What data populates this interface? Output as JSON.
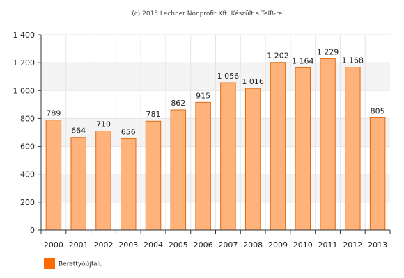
{
  "chart_data": {
    "type": "bar",
    "title": "",
    "credit": "(c) 2015 Lechner Nonprofit Kft. Készült a TeIR-rel.",
    "xlabel": "",
    "ylabel": "",
    "categories": [
      "2000",
      "2001",
      "2002",
      "2003",
      "2004",
      "2005",
      "2006",
      "2007",
      "2008",
      "2009",
      "2010",
      "2011",
      "2012",
      "2013"
    ],
    "series": [
      {
        "name": "Berettyóújfalu",
        "values": [
          789,
          664,
          710,
          656,
          781,
          862,
          915,
          1056,
          1016,
          1202,
          1164,
          1229,
          1168,
          805
        ],
        "value_labels": [
          "789",
          "664",
          "710",
          "656",
          "781",
          "862",
          "915",
          "1 056",
          "1 016",
          "1 202",
          "1 164",
          "1 229",
          "1 168",
          "805"
        ]
      }
    ],
    "ylim": [
      0,
      1400
    ],
    "yticks": [
      0,
      200,
      400,
      600,
      800,
      1000,
      1200,
      1400
    ],
    "ytick_labels": [
      "0",
      "200",
      "400",
      "600",
      "800",
      "1 000",
      "1 200",
      "1 400"
    ],
    "grid": true,
    "legend_position": "bottom-left",
    "colors": {
      "bar_fill": "#ffb27a",
      "bar_stroke": "#e06a10",
      "legend_swatch": "#ff6a00",
      "grid": "#e4e4e4",
      "band": "#f4f4f4",
      "axis": "#333333"
    }
  }
}
